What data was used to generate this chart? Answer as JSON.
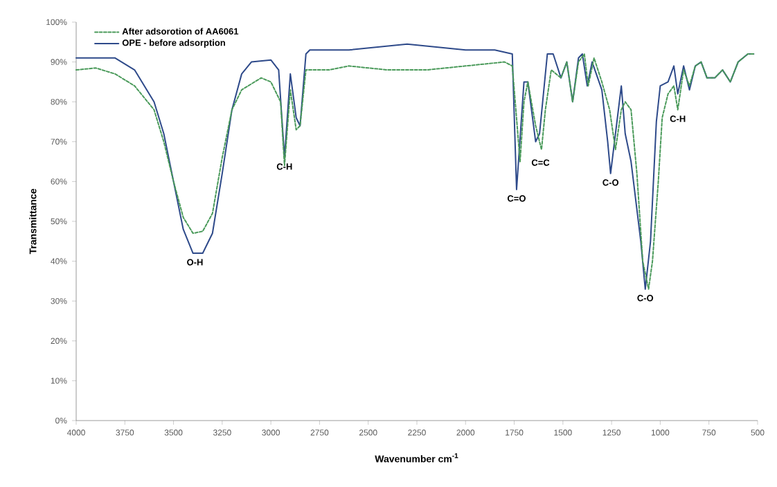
{
  "chart_data": {
    "type": "line",
    "xlabel": "Wavenumber cm$^{-1}$",
    "ylabel": "Transmittance",
    "xlim": [
      4000,
      500
    ],
    "xticks": [
      4000,
      3750,
      3500,
      3250,
      3000,
      2750,
      2500,
      2250,
      2000,
      1750,
      1500,
      1250,
      1000,
      750,
      500
    ],
    "ylim": [
      0,
      100
    ],
    "yticks": [
      {
        "value": 0,
        "label": "0%"
      },
      {
        "value": 10,
        "label": "10%"
      },
      {
        "value": 20,
        "label": "20%"
      },
      {
        "value": 30,
        "label": "30%"
      },
      {
        "value": 40,
        "label": "40%"
      },
      {
        "value": 50,
        "label": "50%"
      },
      {
        "value": 60,
        "label": "60%"
      },
      {
        "value": 70,
        "label": "70%"
      },
      {
        "value": 80,
        "label": "80%"
      },
      {
        "value": 90,
        "label": "90%"
      },
      {
        "value": 100,
        "label": "100%"
      }
    ],
    "grid": false,
    "legend": "top left",
    "marker": "none",
    "series": [
      {
        "name": "After adsorotion of AA6061",
        "color": "#4a9a5a",
        "line_style": "dashed",
        "x": [
          4000,
          3900,
          3800,
          3700,
          3600,
          3550,
          3500,
          3450,
          3400,
          3350,
          3300,
          3250,
          3200,
          3150,
          3050,
          3000,
          2950,
          2930,
          2900,
          2870,
          2850,
          2820,
          2700,
          2600,
          2400,
          2200,
          2000,
          1800,
          1760,
          1720,
          1700,
          1680,
          1640,
          1610,
          1590,
          1560,
          1510,
          1480,
          1450,
          1420,
          1390,
          1370,
          1340,
          1300,
          1260,
          1230,
          1200,
          1180,
          1150,
          1120,
          1090,
          1060,
          1040,
          1010,
          990,
          960,
          930,
          910,
          880,
          850,
          820,
          790,
          760,
          720,
          680,
          640,
          600,
          550,
          520
        ],
        "values": [
          88,
          88.5,
          87,
          84,
          78,
          70,
          60,
          51,
          47,
          47.5,
          52,
          66,
          78,
          83,
          86,
          85,
          80,
          64,
          83,
          73,
          74,
          88,
          88,
          89,
          88,
          88,
          89,
          90,
          89,
          65,
          80,
          85,
          74,
          68,
          78,
          88,
          86,
          90,
          80,
          90,
          92,
          84,
          91,
          85,
          78,
          68,
          78,
          80,
          78,
          62,
          40,
          33,
          40,
          60,
          76,
          82,
          84,
          78,
          88,
          84,
          89,
          90,
          86,
          86,
          88,
          85,
          90,
          92,
          92
        ]
      },
      {
        "name": "OPE - before adsorption",
        "color": "#2e4a8a",
        "line_style": "solid",
        "x": [
          4000,
          3800,
          3700,
          3600,
          3550,
          3500,
          3450,
          3400,
          3350,
          3300,
          3250,
          3200,
          3150,
          3100,
          3000,
          2960,
          2930,
          2900,
          2870,
          2850,
          2820,
          2800,
          2600,
          2300,
          2000,
          1850,
          1760,
          1738,
          1700,
          1680,
          1640,
          1620,
          1580,
          1550,
          1510,
          1480,
          1450,
          1420,
          1400,
          1375,
          1350,
          1300,
          1270,
          1255,
          1200,
          1180,
          1150,
          1100,
          1077,
          1050,
          1020,
          1000,
          960,
          930,
          910,
          880,
          850,
          820,
          790,
          760,
          720,
          680,
          640,
          600,
          550,
          520
        ],
        "values": [
          91,
          91,
          88,
          80,
          72,
          60,
          48,
          42,
          42,
          47,
          62,
          78,
          87,
          90,
          90.5,
          88,
          66,
          87,
          76,
          74,
          92,
          93,
          93,
          94.5,
          93,
          93,
          92,
          58,
          85,
          85,
          70,
          72,
          92,
          92,
          86,
          90,
          80,
          91,
          92,
          84,
          90,
          83,
          70,
          62,
          84,
          72,
          65,
          45,
          33,
          45,
          75,
          84,
          85,
          89,
          82,
          89,
          83,
          89,
          90,
          86,
          86,
          88,
          85,
          90,
          92,
          92
        ]
      }
    ],
    "annotations": [
      {
        "text": "O-H",
        "x": 3390,
        "y": 42
      },
      {
        "text": "C-H",
        "x": 2930,
        "y": 66
      },
      {
        "text": "C=O",
        "x": 1738,
        "y": 58
      },
      {
        "text": "C=C",
        "x": 1615,
        "y": 67
      },
      {
        "text": "C-O",
        "x": 1255,
        "y": 62
      },
      {
        "text": "C-O",
        "x": 1077,
        "y": 33
      },
      {
        "text": "C-H",
        "x": 910,
        "y": 78
      }
    ]
  }
}
